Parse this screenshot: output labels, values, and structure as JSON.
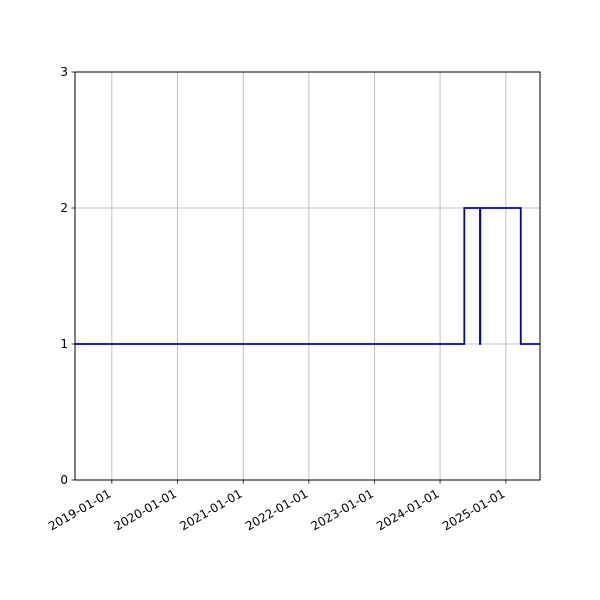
{
  "chart_data": {
    "type": "line",
    "step": "post",
    "title": "",
    "xlabel": "",
    "ylabel": "",
    "x_type": "date",
    "xlim": [
      "2018-06-10",
      "2025-07-10"
    ],
    "ylim": [
      0,
      3
    ],
    "grid": true,
    "x_ticks": [
      "2019-01-01",
      "2020-01-01",
      "2021-01-01",
      "2022-01-01",
      "2023-01-01",
      "2024-01-01",
      "2025-01-01"
    ],
    "y_ticks": [
      0,
      1,
      2,
      3
    ],
    "series": [
      {
        "color": "#0000cc",
        "points": [
          {
            "x": "2018-06-10",
            "y": 1
          },
          {
            "x": "2024-05-15",
            "y": 2
          },
          {
            "x": "2024-08-10",
            "y": 1
          },
          {
            "x": "2024-08-12",
            "y": 2
          },
          {
            "x": "2025-03-25",
            "y": 1
          },
          {
            "x": "2025-07-10",
            "y": 1
          }
        ]
      }
    ],
    "colors": {
      "grid": "#b0b0b0",
      "axes": "#000000"
    }
  }
}
